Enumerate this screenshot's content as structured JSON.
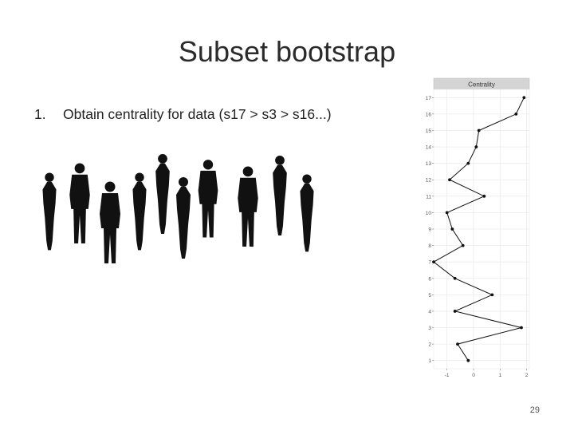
{
  "slide": {
    "title": "Subset bootstrap",
    "bullet_number": "1.",
    "bullet_text": "Obtain centrality for data (s17 > s3 > s16...)",
    "page_number": "29"
  },
  "chart_data": {
    "type": "line",
    "title": "Centrality",
    "xlabel": "",
    "ylabel": "",
    "xlim": [
      -1.5,
      2.1
    ],
    "ylim": [
      0.5,
      17.5
    ],
    "x_ticks": [
      "-1",
      "0",
      "1",
      "2"
    ],
    "y_ticks": [
      "1",
      "2",
      "3",
      "4",
      "5",
      "6",
      "7",
      "8",
      "9",
      "10",
      "11",
      "12",
      "13",
      "14",
      "15",
      "16",
      "17"
    ],
    "grid": true,
    "series": [
      {
        "points": [
          {
            "y": 1,
            "x": -0.2
          },
          {
            "y": 2,
            "x": -0.6
          },
          {
            "y": 3,
            "x": 1.8
          },
          {
            "y": 4,
            "x": -0.7
          },
          {
            "y": 5,
            "x": 0.7
          },
          {
            "y": 6,
            "x": -0.7
          },
          {
            "y": 7,
            "x": -1.5
          },
          {
            "y": 8,
            "x": -0.4
          },
          {
            "y": 9,
            "x": -0.8
          },
          {
            "y": 10,
            "x": -1.0
          },
          {
            "y": 11,
            "x": 0.4
          },
          {
            "y": 12,
            "x": -0.9
          },
          {
            "y": 13,
            "x": -0.2
          },
          {
            "y": 14,
            "x": 0.1
          },
          {
            "y": 15,
            "x": 0.2
          },
          {
            "y": 16,
            "x": 1.6
          },
          {
            "y": 17,
            "x": 1.9
          }
        ]
      }
    ]
  }
}
